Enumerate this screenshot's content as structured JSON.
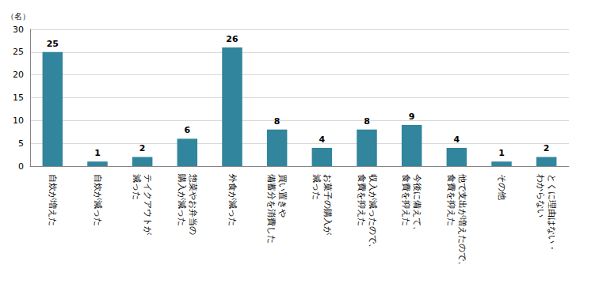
{
  "chart_data": {
    "type": "bar",
    "ylabel": "（名）",
    "categories": [
      "自炊が増えた",
      "自炊が減った",
      "テイクアウトが\n減った",
      "惣菜やお弁当の\n購入が減った",
      "外食が減った",
      "買い置きや\n備蓄分を消費した",
      "お菓子の購入が\n減った",
      "収入が減ったので、\n食費を抑えた",
      "今後に備えて、\n食費を抑えた",
      "他で支出が増えたので、\n食費を抑えた",
      "その他",
      "とくに理由はない・\nわからない"
    ],
    "values": [
      25,
      1,
      2,
      6,
      26,
      8,
      4,
      8,
      9,
      4,
      1,
      2
    ],
    "color": "#31859c",
    "ylim": [
      0,
      30
    ],
    "yticks": [
      0,
      5,
      10,
      15,
      20,
      25,
      30
    ],
    "grid": true,
    "data_labels": true
  }
}
